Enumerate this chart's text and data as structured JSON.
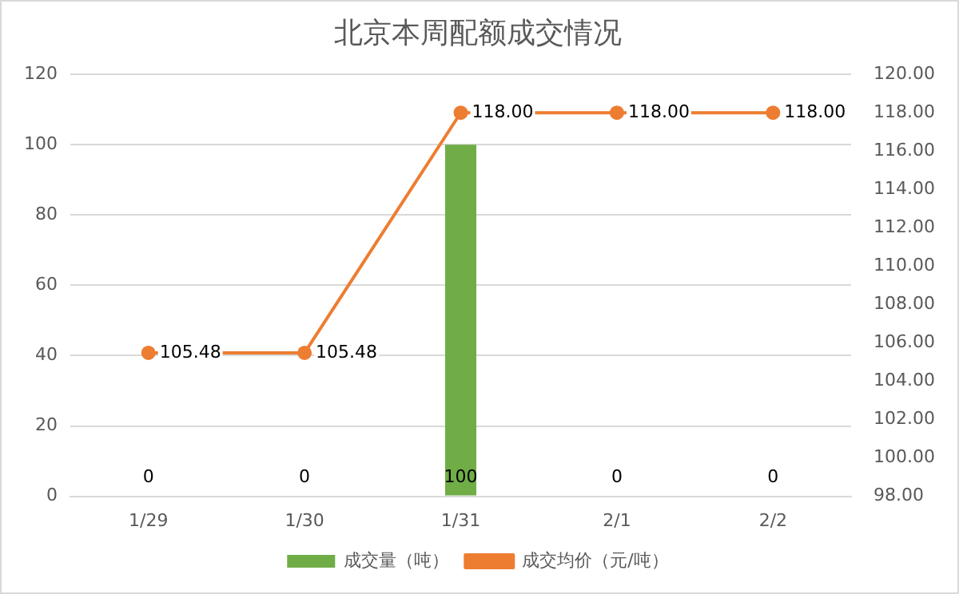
{
  "chart_data": {
    "type": "bar",
    "title": "北京本周配额成交情况",
    "categories": [
      "1/29",
      "1/30",
      "1/31",
      "2/1",
      "2/2"
    ],
    "series": [
      {
        "name": "成交量（吨）",
        "color": "#70ad47",
        "values": [
          0,
          0,
          100,
          0,
          0
        ],
        "value_labels": [
          "0",
          "0",
          "100",
          "0",
          "0"
        ]
      },
      {
        "name": "成交均价（元/吨）",
        "type": "line",
        "axis": "y2",
        "color": "#ed7d31",
        "marker": "circle",
        "values": [
          105.48,
          105.48,
          118,
          118,
          118
        ],
        "value_labels": [
          "105.48",
          "105.48",
          "118.00",
          "118.00",
          "118.00"
        ]
      }
    ],
    "ylim": [
      0,
      120
    ],
    "yticks": [
      0,
      20,
      40,
      60,
      80,
      100,
      120
    ],
    "y2lim": [
      98,
      120
    ],
    "y2ticks": [
      {
        "value": 98,
        "label": "98.00"
      },
      {
        "value": 100,
        "label": "100.00"
      },
      {
        "value": 102,
        "label": "102.00"
      },
      {
        "value": 104,
        "label": "104.00"
      },
      {
        "value": 106,
        "label": "106.00"
      },
      {
        "value": 108,
        "label": "108.00"
      },
      {
        "value": 110,
        "label": "110.00"
      },
      {
        "value": 112,
        "label": "112.00"
      },
      {
        "value": 114,
        "label": "114.00"
      },
      {
        "value": 116,
        "label": "116.00"
      },
      {
        "value": 118,
        "label": "118.00"
      },
      {
        "value": 120,
        "label": "120.00"
      }
    ],
    "grid": "y",
    "legend": "bottom"
  }
}
